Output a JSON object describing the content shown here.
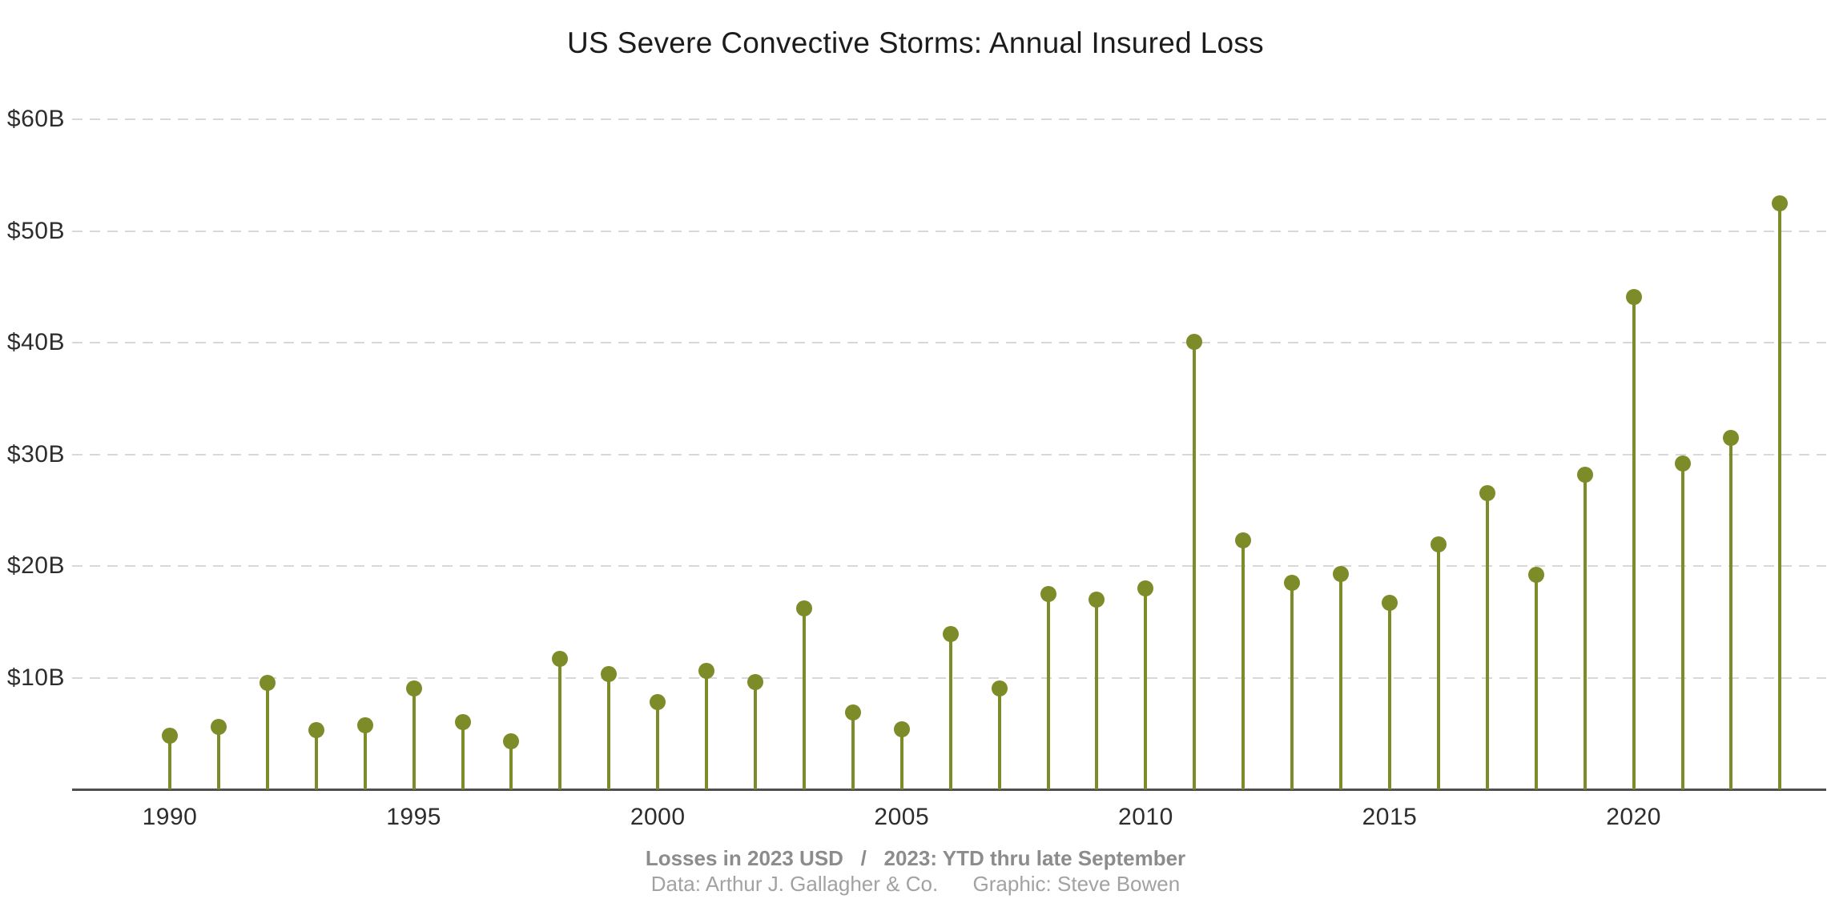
{
  "chart_data": {
    "type": "bar",
    "variant": "lollipop-stem",
    "title": "US Severe Convective Storms: Annual Insured Loss",
    "xlabel": "",
    "ylabel": "",
    "unit": "billions of 2023 USD",
    "categories": [
      1990,
      1991,
      1992,
      1993,
      1994,
      1995,
      1996,
      1997,
      1998,
      1999,
      2000,
      2001,
      2002,
      2003,
      2004,
      2005,
      2006,
      2007,
      2008,
      2009,
      2010,
      2011,
      2012,
      2013,
      2014,
      2015,
      2016,
      2017,
      2018,
      2019,
      2020,
      2021,
      2022,
      2023
    ],
    "values": [
      4.8,
      5.6,
      9.5,
      5.3,
      5.7,
      9.0,
      6.0,
      4.3,
      11.7,
      10.3,
      7.8,
      10.6,
      9.6,
      16.2,
      6.9,
      5.4,
      13.9,
      9.0,
      17.5,
      17.0,
      18.0,
      40.1,
      22.3,
      18.5,
      19.3,
      16.7,
      21.9,
      26.5,
      19.2,
      28.2,
      44.1,
      29.2,
      31.5,
      52.5
    ],
    "ylim": [
      0,
      63
    ],
    "xlim": [
      1988,
      2024
    ],
    "ytick_values": [
      10,
      20,
      30,
      40,
      50,
      60
    ],
    "ytick_labels": [
      "$10B",
      "$20B",
      "$30B",
      "$40B",
      "$50B",
      "$60B"
    ],
    "xtick_values": [
      1990,
      1995,
      2000,
      2005,
      2010,
      2015,
      2020
    ],
    "grid": "horizontal dashed gridlines",
    "legend": "none",
    "colors": {
      "stem": "#7d8b28",
      "marker": "#7d8b28",
      "axis": "#4f4f4f",
      "grid": "#d8d8d8",
      "title": "#1c1c1c",
      "tick_label": "#2d2d2d",
      "note_primary": "#8c8c8c",
      "note_secondary": "#a2a2a2"
    }
  },
  "footer": {
    "line1": "Losses in 2023 USD   /   2023: YTD thru late September",
    "line2": "Data: Arthur J. Gallagher & Co.      Graphic: Steve Bowen"
  }
}
